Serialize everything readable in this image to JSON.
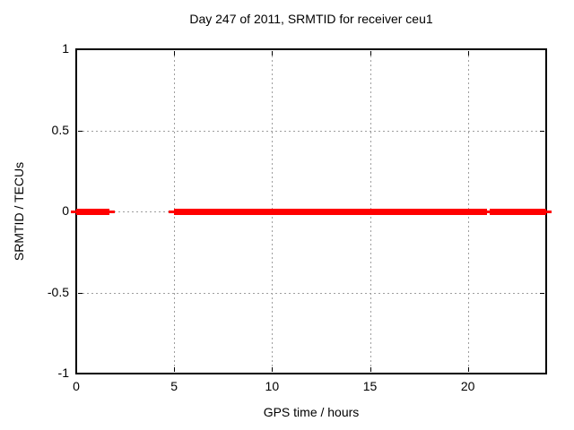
{
  "title": "Day 247 of 2011, SRMTID for receiver ceu1",
  "colors": {
    "background": "#ffffff",
    "axis": "#000000",
    "grid": "#9e9e9e",
    "series": "#ff0000",
    "text": "#000000"
  },
  "chart_data": {
    "type": "line",
    "title": "Day 247 of 2011, SRMTID for receiver ceu1",
    "xlabel": "GPS time / hours",
    "ylabel": "SRMTID / TECUs",
    "xlim": [
      0,
      24
    ],
    "ylim": [
      -1,
      1
    ],
    "grid": true,
    "legend_position": "none",
    "x_ticks": [
      {
        "value": 0,
        "label": "0"
      },
      {
        "value": 5,
        "label": "5"
      },
      {
        "value": 10,
        "label": "10"
      },
      {
        "value": 15,
        "label": "15"
      },
      {
        "value": 20,
        "label": "20"
      }
    ],
    "y_ticks": [
      {
        "value": 1,
        "label": "1"
      },
      {
        "value": 0.5,
        "label": "0.5"
      },
      {
        "value": 0,
        "label": "0"
      },
      {
        "value": -0.5,
        "label": "-0.5"
      },
      {
        "value": -1,
        "label": "-1"
      }
    ],
    "series": [
      {
        "name": "SRMTID",
        "color": "#ff0000",
        "style": "thick horizontal segments at constant value",
        "y_value": 0,
        "segments_hours": [
          {
            "start": 0.0,
            "end": 1.7
          },
          {
            "start": 5.0,
            "end": 21.0
          },
          {
            "start": 21.1,
            "end": 24.0
          }
        ]
      }
    ]
  }
}
